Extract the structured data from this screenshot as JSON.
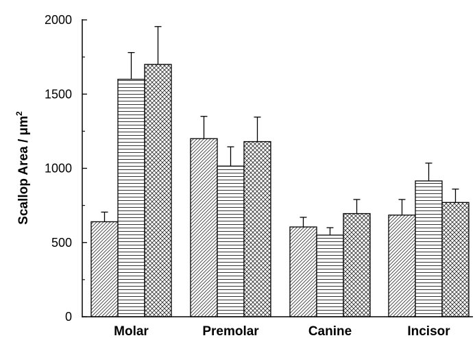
{
  "chart_data": {
    "type": "bar",
    "categories": [
      "Molar",
      "Premolar",
      "Canine",
      "Incisor"
    ],
    "series": [
      {
        "pattern": "diagonal-hatch",
        "values": [
          640,
          1200,
          605,
          685
        ],
        "errors": [
          65,
          150,
          65,
          105
        ]
      },
      {
        "pattern": "horizontal-lines",
        "values": [
          1600,
          1015,
          550,
          915
        ],
        "errors": [
          180,
          130,
          50,
          120
        ]
      },
      {
        "pattern": "crosshatch",
        "values": [
          1700,
          1180,
          695,
          770
        ],
        "errors": [
          255,
          165,
          95,
          90
        ]
      }
    ],
    "ylabel_main": "Scallop Area / μm",
    "ylabel_sup": "2",
    "ylim": [
      0,
      2000
    ],
    "yticks": [
      0,
      500,
      1000,
      1500,
      2000
    ],
    "ytick_labels": [
      "0",
      "500",
      "1000",
      "1500",
      "2000"
    ],
    "grid": false,
    "legend": "none"
  }
}
